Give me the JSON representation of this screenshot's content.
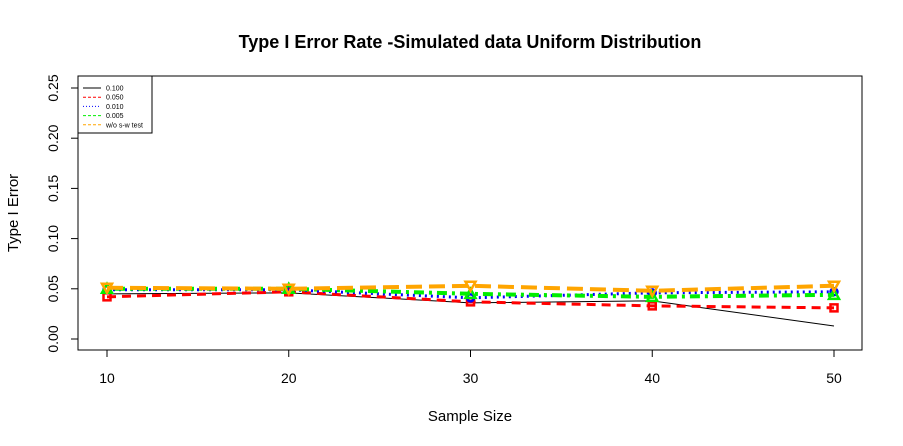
{
  "chart_data": {
    "type": "line",
    "title": "Type I Error Rate -Simulated data Uniform Distribution",
    "xlabel": "Sample Size",
    "ylabel": "Type I Error",
    "x": [
      10,
      20,
      30,
      40,
      50
    ],
    "xticks": [
      "10",
      "20",
      "30",
      "40",
      "50"
    ],
    "yticks": [
      "0.00",
      "0.05",
      "0.10",
      "0.15",
      "0.20",
      "0.25"
    ],
    "ylim": [
      0,
      0.25
    ],
    "xlim": [
      10,
      50
    ],
    "grid": false,
    "legend_position": "top-left",
    "series": [
      {
        "name": "0.100",
        "values": [
          0.045,
          0.046,
          0.036,
          0.038,
          0.013
        ],
        "color": "#000000",
        "dash": "solid",
        "marker": "none",
        "width": 1
      },
      {
        "name": "0.050",
        "values": [
          0.042,
          0.047,
          0.037,
          0.033,
          0.031
        ],
        "color": "#ff0000",
        "dash": "dashed",
        "marker": "square",
        "width": 3
      },
      {
        "name": "0.010",
        "values": [
          0.049,
          0.049,
          0.041,
          0.046,
          0.047
        ],
        "color": "#0000ff",
        "dash": "dotted",
        "marker": "circle",
        "width": 3
      },
      {
        "name": "0.005",
        "values": [
          0.05,
          0.05,
          0.045,
          0.042,
          0.044
        ],
        "color": "#00ee00",
        "dash": "dotdash",
        "marker": "triangle-up",
        "width": 4
      },
      {
        "name": "w/o s-w test",
        "values": [
          0.051,
          0.05,
          0.053,
          0.048,
          0.053
        ],
        "color": "#ffa500",
        "dash": "longdash",
        "marker": "triangle-down",
        "width": 4
      }
    ]
  }
}
